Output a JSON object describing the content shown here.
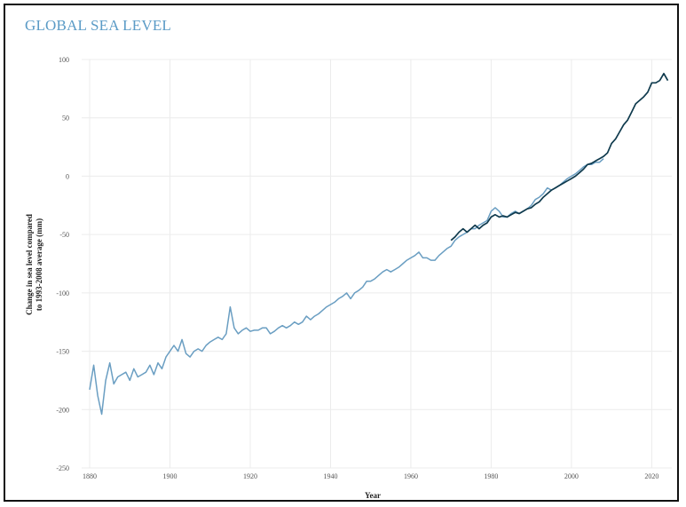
{
  "chart_data": {
    "type": "line",
    "title": "GLOBAL SEA LEVEL",
    "xlabel": "Year",
    "ylabel_line1": "Change in sea level compared",
    "ylabel_line2": "to 1993-2008 average (mm)",
    "xlim": [
      1878,
      2025
    ],
    "ylim": [
      -250,
      100
    ],
    "xticks": [
      1880,
      1900,
      1920,
      1940,
      1960,
      1980,
      2000,
      2020
    ],
    "yticks": [
      -250,
      -200,
      -150,
      -100,
      -50,
      0,
      50,
      100
    ],
    "grid": true,
    "colors": {
      "title": "#5b9bc6",
      "series_1": "#6a9ec2",
      "series_2": "#0f3a4d",
      "grid": "#ececec"
    },
    "series": [
      {
        "x": [
          1880,
          1881,
          1882,
          1883,
          1884,
          1885,
          1886,
          1887,
          1888,
          1889,
          1890,
          1891,
          1892,
          1893,
          1894,
          1895,
          1896,
          1897,
          1898,
          1899,
          1900,
          1901,
          1902,
          1903,
          1904,
          1905,
          1906,
          1907,
          1908,
          1909,
          1910,
          1911,
          1912,
          1913,
          1914,
          1915,
          1916,
          1917,
          1918,
          1919,
          1920,
          1921,
          1922,
          1923,
          1924,
          1925,
          1926,
          1927,
          1928,
          1929,
          1930,
          1931,
          1932,
          1933,
          1934,
          1935,
          1936,
          1937,
          1938,
          1939,
          1940,
          1941,
          1942,
          1943,
          1944,
          1945,
          1946,
          1947,
          1948,
          1949,
          1950,
          1951,
          1952,
          1953,
          1954,
          1955,
          1956,
          1957,
          1958,
          1959,
          1960,
          1961,
          1962,
          1963,
          1964,
          1965,
          1966,
          1967,
          1968,
          1969,
          1970,
          1971,
          1972,
          1973,
          1974,
          1975,
          1976,
          1977,
          1978,
          1979,
          1980,
          1981,
          1982,
          1983,
          1984,
          1985,
          1986,
          1987,
          1988,
          1989,
          1990,
          1991,
          1992,
          1993,
          1994,
          1995,
          1996,
          1997,
          1998,
          1999,
          2000,
          2001,
          2002,
          2003,
          2004,
          2005,
          2006,
          2007,
          2008
        ],
        "y": [
          -183,
          -162,
          -188,
          -204,
          -175,
          -160,
          -178,
          -172,
          -170,
          -168,
          -175,
          -165,
          -172,
          -170,
          -168,
          -162,
          -170,
          -160,
          -165,
          -155,
          -150,
          -145,
          -150,
          -140,
          -152,
          -155,
          -150,
          -148,
          -150,
          -145,
          -142,
          -140,
          -138,
          -140,
          -135,
          -112,
          -130,
          -135,
          -132,
          -130,
          -133,
          -132,
          -132,
          -130,
          -130,
          -135,
          -133,
          -130,
          -128,
          -130,
          -128,
          -125,
          -127,
          -125,
          -120,
          -123,
          -120,
          -118,
          -115,
          -112,
          -110,
          -108,
          -105,
          -103,
          -100,
          -105,
          -100,
          -98,
          -95,
          -90,
          -90,
          -88,
          -85,
          -82,
          -80,
          -82,
          -80,
          -78,
          -75,
          -72,
          -70,
          -68,
          -65,
          -70,
          -70,
          -72,
          -72,
          -68,
          -65,
          -62,
          -60,
          -55,
          -52,
          -50,
          -48,
          -45,
          -45,
          -42,
          -40,
          -38,
          -30,
          -27,
          -30,
          -35,
          -35,
          -32,
          -30,
          -32,
          -30,
          -28,
          -25,
          -20,
          -18,
          -15,
          -10,
          -12,
          -10,
          -8,
          -5,
          -2,
          0,
          2,
          5,
          8,
          10,
          10,
          12,
          12,
          15
        ]
      },
      {
        "x": [
          1970,
          1971,
          1972,
          1973,
          1974,
          1975,
          1976,
          1977,
          1978,
          1979,
          1980,
          1981,
          1982,
          1983,
          1984,
          1985,
          1986,
          1987,
          1988,
          1989,
          1990,
          1991,
          1992,
          1993,
          1994,
          1995,
          1996,
          1997,
          1998,
          1999,
          2000,
          2001,
          2002,
          2003,
          2004,
          2005,
          2006,
          2007,
          2008,
          2009,
          2010,
          2011,
          2012,
          2013,
          2014,
          2015,
          2016,
          2017,
          2018,
          2019,
          2020,
          2021,
          2022,
          2023,
          2024
        ],
        "y": [
          -55,
          -52,
          -48,
          -45,
          -48,
          -45,
          -42,
          -45,
          -42,
          -40,
          -35,
          -33,
          -35,
          -34,
          -35,
          -33,
          -31,
          -32,
          -30,
          -28,
          -27,
          -24,
          -22,
          -18,
          -15,
          -12,
          -10,
          -8,
          -6,
          -4,
          -2,
          0,
          3,
          6,
          10,
          11,
          13,
          15,
          17,
          20,
          28,
          32,
          38,
          44,
          48,
          55,
          62,
          65,
          68,
          72,
          80,
          80,
          82,
          88,
          82
        ]
      }
    ]
  }
}
